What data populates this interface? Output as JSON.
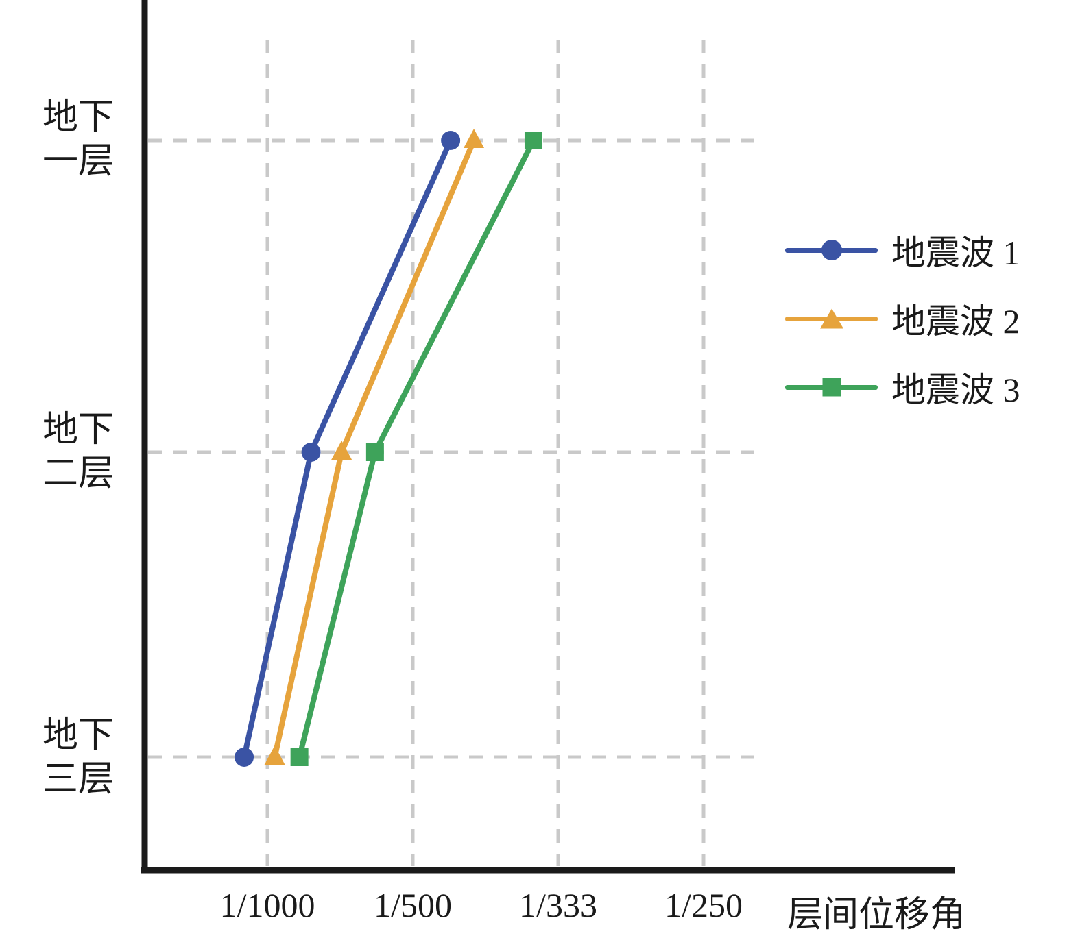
{
  "chart_data": {
    "type": "line",
    "title": "",
    "xlabel": "层间位移角",
    "ylabel": "",
    "grid": "dashed",
    "legend_position": "right",
    "categories": [
      "地下一层",
      "地下二层",
      "地下三层"
    ],
    "category_label_lines": [
      [
        "地下",
        "一层"
      ],
      [
        "地下",
        "二层"
      ],
      [
        "地下",
        "三层"
      ]
    ],
    "x_ticks": [
      {
        "label": "1/1000",
        "value": 1.0
      },
      {
        "label": "1/500",
        "value": 2.0
      },
      {
        "label": "1/333",
        "value": 3.0
      },
      {
        "label": "1/250",
        "value": 4.0
      }
    ],
    "x_unit": "interstory drift ratio (per mille, 1 = 1/1000)",
    "series": [
      {
        "name": "地震波 1",
        "marker": "circle",
        "color": "#3a53a4",
        "values_permille": [
          2.26,
          1.3,
          0.84
        ],
        "values_drift_approx": [
          "1/442",
          "1/769",
          "1/1190"
        ]
      },
      {
        "name": "地震波 2",
        "marker": "triangle",
        "color": "#e6a33c",
        "values_permille": [
          2.42,
          1.51,
          1.05
        ],
        "values_drift_approx": [
          "1/413",
          "1/662",
          "1/952"
        ]
      },
      {
        "name": "地震波 3",
        "marker": "square",
        "color": "#3ea35a",
        "values_permille": [
          2.83,
          1.74,
          1.22
        ],
        "values_drift_approx": [
          "1/353",
          "1/575",
          "1/820"
        ]
      }
    ],
    "style": {
      "axis_color": "#1a1a1a",
      "grid_color": "#c9c9c9"
    }
  }
}
